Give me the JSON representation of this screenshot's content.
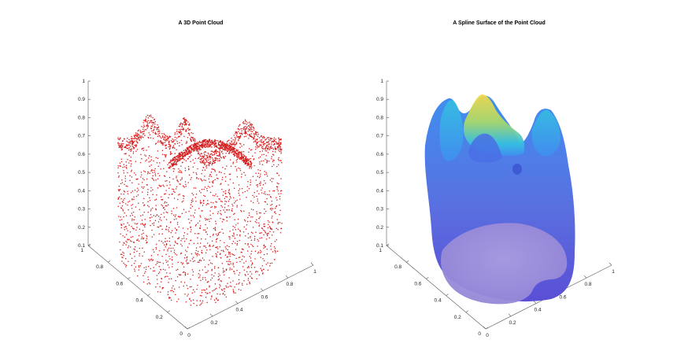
{
  "chart_data": [
    {
      "type": "scatter",
      "title": "A 3D Point Cloud",
      "projection": "3d",
      "marker_color": "#d62020",
      "marker": "point",
      "zlim": [
        0,
        1
      ],
      "xlim": [
        0,
        1
      ],
      "ylim": [
        0,
        1
      ],
      "z_ticks": [
        "0.1",
        "0.2",
        "0.3",
        "0.4",
        "0.5",
        "0.6",
        "0.7",
        "0.8",
        "0.9",
        "1"
      ],
      "x_ticks": [
        "0",
        "0.2",
        "0.4",
        "0.6",
        "0.8",
        "1"
      ],
      "y_ticks": [
        "0",
        "0.2",
        "0.4",
        "0.6",
        "0.8",
        "1"
      ],
      "shape": "tooth-shaped closed surface sampled as points"
    },
    {
      "type": "surface",
      "title": "A Spline Surface of the Point Cloud",
      "projection": "3d",
      "colormap": "parula",
      "colormap_colors": [
        "#5a4fd6",
        "#3f8ff0",
        "#35c0e0",
        "#6ad28f",
        "#f2d94a"
      ],
      "base_color": "#a394de",
      "zlim": [
        0,
        1
      ],
      "xlim": [
        0,
        1
      ],
      "ylim": [
        0,
        1
      ],
      "z_ticks": [
        "0.1",
        "0.2",
        "0.3",
        "0.4",
        "0.5",
        "0.6",
        "0.7",
        "0.8",
        "0.9",
        "1"
      ],
      "x_ticks": [
        "0",
        "0.2",
        "0.4",
        "0.6",
        "0.8",
        "1"
      ],
      "y_ticks": [
        "0",
        "0.2",
        "0.4",
        "0.6",
        "0.8",
        "1"
      ]
    }
  ]
}
